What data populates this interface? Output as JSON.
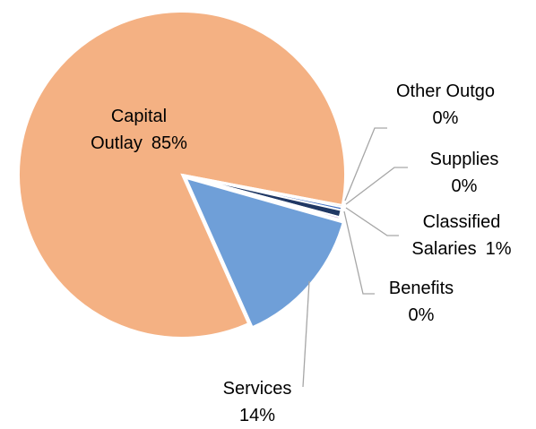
{
  "chart_data": {
    "type": "pie",
    "categories": [
      "Capital Outlay",
      "Other Outgo",
      "Supplies",
      "Classified Salaries",
      "Benefits",
      "Services"
    ],
    "values": [
      85,
      0.2,
      0.3,
      0.7,
      0.2,
      14
    ],
    "value_labels": [
      "85%",
      "0%",
      "0%",
      "1%",
      "0%",
      "14%"
    ],
    "colors": [
      "#f4b183",
      "#a5a5a5",
      "#4472c4",
      "#203864",
      "#7030a0",
      "#6f9fd8"
    ]
  }
}
